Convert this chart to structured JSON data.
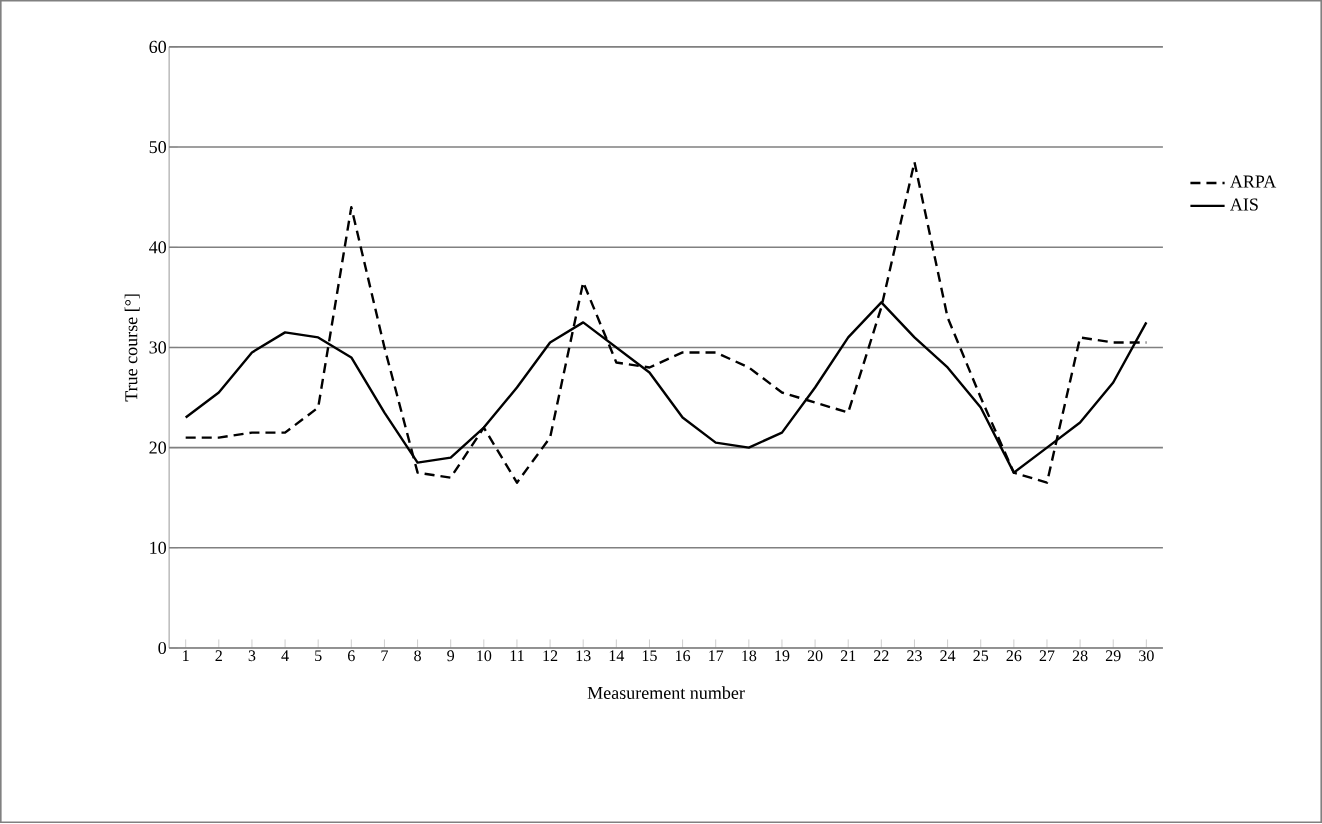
{
  "chart_data": {
    "type": "line",
    "xlabel": "Measurement number",
    "ylabel": "True course [°]",
    "categories": [
      "1",
      "2",
      "3",
      "4",
      "5",
      "6",
      "7",
      "8",
      "9",
      "10",
      "11",
      "12",
      "13",
      "14",
      "15",
      "16",
      "17",
      "18",
      "19",
      "20",
      "21",
      "22",
      "23",
      "24",
      "25",
      "26",
      "27",
      "28",
      "29",
      "30"
    ],
    "series": [
      {
        "name": "ARPA",
        "color": "#000000",
        "line_style": "dashed",
        "values": [
          21,
          21,
          21.5,
          21.5,
          24,
          44,
          30,
          17.5,
          17,
          22,
          16.5,
          21,
          36.5,
          28.5,
          28,
          29.5,
          29.5,
          28,
          25.5,
          24.5,
          23.5,
          34,
          48.5,
          33,
          25,
          17.5,
          16.5,
          31,
          30.5,
          30.5
        ]
      },
      {
        "name": "AIS",
        "color": "#000000",
        "line_style": "solid",
        "values": [
          23,
          25.5,
          29.5,
          31.5,
          31,
          29,
          23.5,
          18.5,
          19,
          22,
          26,
          30.5,
          32.5,
          30,
          27.5,
          23,
          20.5,
          20,
          21.5,
          26,
          31,
          34.5,
          31,
          28,
          24,
          17.5,
          20,
          22.5,
          26.5,
          32.5
        ]
      }
    ],
    "ylim": [
      0,
      60
    ],
    "yticks": [
      0,
      10,
      20,
      30,
      40,
      50,
      60
    ],
    "grid": "y",
    "legend": "right",
    "marker": "none"
  }
}
